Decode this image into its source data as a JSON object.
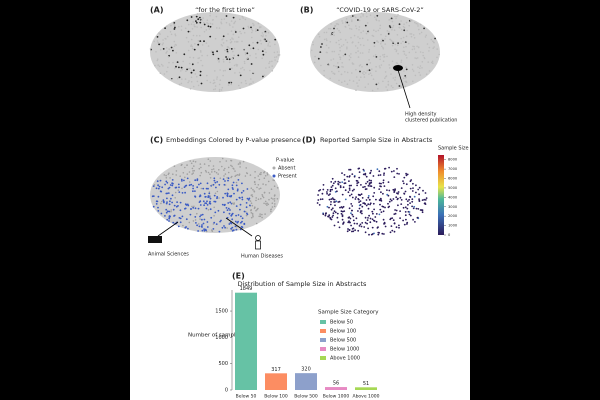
{
  "panels": {
    "a": {
      "label": "(A)",
      "title": "“for the first time”"
    },
    "b": {
      "label": "(B)",
      "title": "“COVID-19 or SARS-CoV-2”",
      "annotation": [
        "High density",
        "clustered publication"
      ]
    },
    "c": {
      "label": "(C)",
      "title": "Embeddings Colored by P-value presence",
      "legend_title": "P-value",
      "legend": [
        "Absent",
        "Present"
      ],
      "annotations": [
        "Animal Sciences",
        "Human Diseases"
      ]
    },
    "d": {
      "label": "(D)",
      "title": "Reported Sample Size in Abstracts",
      "colorbar_title": "Sample Size",
      "colorbar_lim": [
        0,
        8500
      ],
      "colorbar_ticks": [
        0,
        1000,
        2000,
        3000,
        4000,
        5000,
        6000,
        7000,
        8000
      ]
    }
  },
  "chart_data": {
    "type": "bar",
    "panel_label": "(E)",
    "title": "Distribution of Sample Size in Abstracts",
    "y_label": "Number of samples",
    "legend_title": "Sample Size Category",
    "categories": [
      "Below 50",
      "Below 100",
      "Below 500",
      "Below 1000",
      "Above 1000"
    ],
    "values": [
      1849,
      317,
      320,
      56,
      51
    ],
    "colors": [
      "#66c2a5",
      "#fc8d62",
      "#8da0cb",
      "#e78ac3",
      "#a6d854"
    ],
    "ylim": [
      0,
      1900
    ],
    "yticks": [
      0,
      500,
      1000,
      1500
    ]
  }
}
